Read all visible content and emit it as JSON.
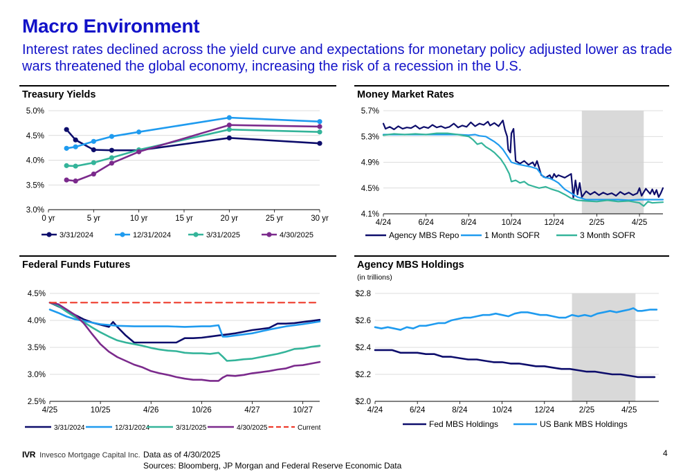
{
  "header": {
    "title": "Macro Environment",
    "subtitle": "Interest rates declined across the yield curve and expectations for monetary policy adjusted lower as trade wars threatened the global economy, increasing the risk of a recession in the U.S."
  },
  "footer": {
    "logo_ticker": "IVR",
    "logo_name": "Invesco Mortgage Capital Inc.",
    "data_as_of": "Data as of 4/30/2025",
    "sources": "Sources: Bloomberg, JP Morgan and Federal Reserve Economic Data",
    "page_number": "4"
  },
  "colors": {
    "title": "#1212c8",
    "navy": "#0d0d6b",
    "light_blue": "#1f9bef",
    "teal": "#34b49a",
    "purple": "#7b2a8c",
    "red_dashed": "#ee3b2b",
    "shading": "#d9d9d9"
  },
  "chart_data": [
    {
      "id": "treasury",
      "type": "line",
      "title": "Treasury Yields",
      "xlabel": "",
      "ylabel": "",
      "xlim": [
        0,
        30
      ],
      "ylim": [
        3.0,
        5.0
      ],
      "x_ticks": [
        0,
        5,
        10,
        15,
        20,
        25,
        30
      ],
      "x_tick_labels": [
        "0 yr",
        "5 yr",
        "10 yr",
        "15 yr",
        "20 yr",
        "25 yr",
        "30 yr"
      ],
      "y_ticks": [
        3.0,
        3.5,
        4.0,
        4.5,
        5.0
      ],
      "y_tick_labels": [
        "3.0%",
        "3.5%",
        "4.0%",
        "4.5%",
        "5.0%"
      ],
      "grid": "horizontal",
      "legend": "bottom",
      "markers_x": [
        2,
        3,
        5,
        7,
        10,
        20,
        30
      ],
      "series": [
        {
          "name": "3/31/2024",
          "color": "#0d0d6b",
          "x": [
            2,
            3,
            5,
            7,
            10,
            20,
            30
          ],
          "values": [
            4.62,
            4.41,
            4.21,
            4.2,
            4.2,
            4.45,
            4.34
          ]
        },
        {
          "name": "12/31/2024",
          "color": "#1f9bef",
          "x": [
            2,
            3,
            5,
            7,
            10,
            20,
            30
          ],
          "values": [
            4.24,
            4.27,
            4.38,
            4.48,
            4.57,
            4.86,
            4.78
          ]
        },
        {
          "name": "3/31/2025",
          "color": "#34b49a",
          "x": [
            2,
            3,
            5,
            7,
            10,
            20,
            30
          ],
          "values": [
            3.89,
            3.88,
            3.95,
            4.05,
            4.21,
            4.62,
            4.57
          ]
        },
        {
          "name": "4/30/2025",
          "color": "#7b2a8c",
          "x": [
            2,
            3,
            5,
            7,
            10,
            20,
            30
          ],
          "values": [
            3.6,
            3.58,
            3.72,
            3.94,
            4.17,
            4.71,
            4.68
          ]
        }
      ]
    },
    {
      "id": "money",
      "type": "line",
      "title": "Money Market Rates",
      "xlabel": "",
      "ylabel": "",
      "xlim": [
        0,
        13.1
      ],
      "ylim": [
        4.1,
        5.7
      ],
      "x_ticks": [
        0,
        2,
        4,
        6,
        8,
        10,
        12
      ],
      "x_tick_labels": [
        "4/24",
        "6/24",
        "8/24",
        "10/24",
        "12/24",
        "2/25",
        "4/25"
      ],
      "y_ticks": [
        4.1,
        4.5,
        4.9,
        5.3,
        5.7
      ],
      "y_tick_labels": [
        "4.1%",
        "4.5%",
        "4.9%",
        "5.3%",
        "5.7%"
      ],
      "grid": "horizontal",
      "legend": "bottom",
      "shaded_x_range": [
        9.3,
        12.2
      ],
      "series": [
        {
          "name": "Agency MBS Repo",
          "color": "#0d0d6b",
          "x": [
            0,
            0.1,
            0.3,
            0.5,
            0.7,
            0.9,
            1.1,
            1.3,
            1.5,
            1.7,
            1.9,
            2.1,
            2.3,
            2.5,
            2.7,
            2.9,
            3.1,
            3.3,
            3.5,
            3.7,
            3.9,
            4.1,
            4.3,
            4.5,
            4.7,
            4.9,
            5.0,
            5.2,
            5.4,
            5.6,
            5.7,
            5.8,
            5.85,
            5.95,
            6.0,
            6.1,
            6.2,
            6.4,
            6.6,
            6.8,
            7.0,
            7.1,
            7.2,
            7.4,
            7.6,
            7.8,
            7.9,
            8.0,
            8.1,
            8.2,
            8.5,
            8.8,
            8.9,
            9.0,
            9.1,
            9.2,
            9.3,
            9.5,
            9.7,
            9.9,
            10.1,
            10.3,
            10.5,
            10.7,
            10.9,
            11.1,
            11.3,
            11.5,
            11.7,
            11.9,
            12.0,
            12.1,
            12.3,
            12.5,
            12.6,
            12.7,
            12.8,
            12.9,
            13.0,
            13.1
          ],
          "values": [
            5.5,
            5.42,
            5.45,
            5.41,
            5.46,
            5.42,
            5.44,
            5.43,
            5.47,
            5.42,
            5.45,
            5.43,
            5.48,
            5.44,
            5.46,
            5.43,
            5.45,
            5.5,
            5.44,
            5.47,
            5.45,
            5.52,
            5.46,
            5.5,
            5.48,
            5.53,
            5.47,
            5.51,
            5.46,
            5.55,
            5.4,
            5.3,
            5.1,
            5.05,
            5.35,
            5.42,
            4.92,
            4.88,
            4.92,
            4.86,
            4.9,
            4.84,
            4.92,
            4.7,
            4.66,
            4.7,
            4.64,
            4.72,
            4.67,
            4.7,
            4.66,
            4.72,
            4.35,
            4.62,
            4.4,
            4.58,
            4.36,
            4.45,
            4.4,
            4.44,
            4.39,
            4.43,
            4.4,
            4.42,
            4.38,
            4.44,
            4.4,
            4.43,
            4.39,
            4.42,
            4.5,
            4.38,
            4.49,
            4.41,
            4.48,
            4.4,
            4.47,
            4.36,
            4.42,
            4.5
          ]
        },
        {
          "name": "1 Month SOFR",
          "color": "#1f9bef",
          "x": [
            0,
            0.5,
            1.0,
            1.5,
            2.0,
            2.5,
            3.0,
            3.5,
            4.0,
            4.3,
            4.5,
            4.8,
            5.0,
            5.2,
            5.4,
            5.6,
            5.8,
            6.0,
            6.3,
            6.6,
            6.9,
            7.2,
            7.5,
            7.8,
            8.0,
            8.2,
            8.5,
            8.8,
            9.1,
            9.5,
            10.0,
            10.5,
            11.0,
            11.5,
            12.0,
            12.5,
            13.1
          ],
          "values": [
            5.33,
            5.33,
            5.33,
            5.33,
            5.33,
            5.33,
            5.33,
            5.33,
            5.32,
            5.33,
            5.31,
            5.3,
            5.26,
            5.22,
            5.17,
            5.1,
            5.0,
            4.9,
            4.87,
            4.85,
            4.83,
            4.8,
            4.67,
            4.65,
            4.62,
            4.58,
            4.48,
            4.42,
            4.36,
            4.32,
            4.32,
            4.32,
            4.32,
            4.31,
            4.32,
            4.32,
            4.32
          ]
        },
        {
          "name": "3 Month SOFR",
          "color": "#34b49a",
          "x": [
            0,
            0.5,
            1.0,
            1.5,
            2.0,
            2.5,
            3.0,
            3.5,
            4.0,
            4.2,
            4.4,
            4.6,
            4.8,
            5.0,
            5.2,
            5.5,
            5.7,
            5.9,
            6.0,
            6.2,
            6.4,
            6.6,
            6.8,
            7.0,
            7.3,
            7.6,
            7.9,
            8.2,
            8.5,
            8.8,
            9.1,
            9.5,
            10.0,
            10.5,
            11.0,
            11.5,
            12.0,
            12.2,
            12.4,
            12.6,
            13.1
          ],
          "values": [
            5.32,
            5.34,
            5.33,
            5.34,
            5.33,
            5.35,
            5.35,
            5.33,
            5.3,
            5.25,
            5.18,
            5.2,
            5.14,
            5.1,
            5.05,
            4.95,
            4.85,
            4.72,
            4.6,
            4.62,
            4.58,
            4.6,
            4.55,
            4.53,
            4.5,
            4.52,
            4.48,
            4.45,
            4.4,
            4.34,
            4.31,
            4.3,
            4.29,
            4.31,
            4.29,
            4.3,
            4.27,
            4.22,
            4.29,
            4.27,
            4.28
          ]
        }
      ]
    },
    {
      "id": "fedfunds",
      "type": "line",
      "title": "Federal Funds Futures",
      "xlabel": "",
      "ylabel": "",
      "xlim": [
        0,
        32
      ],
      "ylim": [
        2.5,
        4.5
      ],
      "x_ticks": [
        0,
        6,
        12,
        18,
        24,
        30
      ],
      "x_tick_labels": [
        "4/25",
        "10/25",
        "4/26",
        "10/26",
        "4/27",
        "10/27"
      ],
      "y_ticks": [
        2.5,
        3.0,
        3.5,
        4.0,
        4.5
      ],
      "y_tick_labels": [
        "2.5%",
        "3.0%",
        "3.5%",
        "4.0%",
        "4.5%"
      ],
      "grid": "horizontal",
      "legend": "bottom",
      "series": [
        {
          "name": "3/31/2024",
          "color": "#0d0d6b",
          "x": [
            0,
            1,
            2,
            3,
            4,
            5,
            6,
            7,
            7.5,
            8,
            9,
            10,
            11,
            12,
            13,
            14,
            15,
            16,
            17,
            18,
            19,
            20,
            21,
            22,
            23,
            24,
            25,
            26,
            27,
            28,
            29,
            30,
            31,
            32
          ],
          "values": [
            4.33,
            4.26,
            4.18,
            4.1,
            4.02,
            3.96,
            3.92,
            3.88,
            3.97,
            3.88,
            3.72,
            3.59,
            3.59,
            3.59,
            3.59,
            3.59,
            3.59,
            3.67,
            3.67,
            3.68,
            3.7,
            3.72,
            3.74,
            3.76,
            3.79,
            3.82,
            3.84,
            3.86,
            3.94,
            3.94,
            3.95,
            3.97,
            3.99,
            4.01
          ]
        },
        {
          "name": "12/31/2024",
          "color": "#1f9bef",
          "x": [
            0,
            1,
            2,
            3,
            4,
            5,
            6,
            8,
            10,
            12,
            14,
            16,
            18,
            19,
            20,
            20.5,
            21,
            22,
            24,
            26,
            28,
            30,
            32
          ],
          "values": [
            4.2,
            4.14,
            4.07,
            4.02,
            3.99,
            3.96,
            3.93,
            3.9,
            3.89,
            3.89,
            3.89,
            3.88,
            3.89,
            3.89,
            3.91,
            3.7,
            3.7,
            3.72,
            3.76,
            3.83,
            3.89,
            3.93,
            3.98
          ]
        },
        {
          "name": "3/31/2025",
          "color": "#34b49a",
          "x": [
            0,
            1,
            2,
            3,
            4,
            5,
            6,
            7,
            8,
            9,
            10,
            11,
            12,
            13,
            14,
            15,
            16,
            17,
            18,
            19,
            20,
            20.5,
            21,
            22,
            23,
            24,
            25,
            26,
            27,
            28,
            29,
            30,
            31,
            32
          ],
          "values": [
            4.33,
            4.27,
            4.16,
            4.06,
            3.97,
            3.87,
            3.78,
            3.7,
            3.63,
            3.59,
            3.56,
            3.53,
            3.49,
            3.46,
            3.44,
            3.43,
            3.4,
            3.39,
            3.39,
            3.38,
            3.4,
            3.33,
            3.25,
            3.26,
            3.28,
            3.29,
            3.32,
            3.35,
            3.38,
            3.42,
            3.47,
            3.48,
            3.51,
            3.53
          ]
        },
        {
          "name": "4/30/2025",
          "color": "#7b2a8c",
          "x": [
            0,
            1,
            2,
            3,
            4,
            5,
            6,
            7,
            8,
            9,
            10,
            11,
            12,
            13,
            14,
            15,
            16,
            17,
            18,
            19,
            20,
            20.5,
            21,
            22,
            23,
            24,
            25,
            26,
            27,
            28,
            29,
            30,
            31,
            32
          ],
          "values": [
            4.33,
            4.3,
            4.2,
            4.1,
            3.95,
            3.75,
            3.56,
            3.42,
            3.32,
            3.25,
            3.18,
            3.13,
            3.06,
            3.02,
            2.99,
            2.95,
            2.92,
            2.9,
            2.9,
            2.88,
            2.88,
            2.94,
            2.98,
            2.97,
            2.99,
            3.02,
            3.04,
            3.06,
            3.09,
            3.11,
            3.16,
            3.17,
            3.2,
            3.23
          ]
        },
        {
          "name": "Current",
          "color": "#ee3b2b",
          "dashed": true,
          "x": [
            0,
            32
          ],
          "values": [
            4.33,
            4.33
          ]
        }
      ]
    },
    {
      "id": "mbs",
      "type": "line",
      "title": "Agency MBS Holdings",
      "subtitle": "(in trillions)",
      "xlabel": "",
      "ylabel": "",
      "xlim": [
        0,
        13.4
      ],
      "ylim": [
        2.0,
        2.8
      ],
      "x_ticks": [
        0,
        2,
        4,
        6,
        8,
        10,
        12
      ],
      "x_tick_labels": [
        "4/24",
        "6/24",
        "8/24",
        "10/24",
        "12/24",
        "2/25",
        "4/25"
      ],
      "y_ticks": [
        2.0,
        2.2,
        2.4,
        2.6,
        2.8
      ],
      "y_tick_labels": [
        "$2.0",
        "$2.2",
        "$2.4",
        "$2.6",
        "$2.8"
      ],
      "grid": "horizontal",
      "legend": "bottom",
      "shaded_x_range": [
        9.3,
        12.3
      ],
      "series": [
        {
          "name": "Fed MBS Holdings",
          "color": "#0d0d6b",
          "x": [
            0,
            0.4,
            0.8,
            1.2,
            1.6,
            2.0,
            2.4,
            2.8,
            3.2,
            3.6,
            4.0,
            4.4,
            4.8,
            5.2,
            5.6,
            6.0,
            6.4,
            6.8,
            7.2,
            7.6,
            8.0,
            8.4,
            8.8,
            9.2,
            9.6,
            10.0,
            10.4,
            10.8,
            11.2,
            11.6,
            12.0,
            12.4,
            12.8,
            13.2
          ],
          "values": [
            2.38,
            2.38,
            2.38,
            2.36,
            2.36,
            2.36,
            2.35,
            2.35,
            2.33,
            2.33,
            2.32,
            2.31,
            2.31,
            2.3,
            2.29,
            2.29,
            2.28,
            2.28,
            2.27,
            2.26,
            2.26,
            2.25,
            2.24,
            2.24,
            2.23,
            2.22,
            2.22,
            2.21,
            2.2,
            2.2,
            2.19,
            2.18,
            2.18,
            2.18
          ]
        },
        {
          "name": "US Bank MBS Holdings",
          "color": "#1f9bef",
          "x": [
            0,
            0.3,
            0.6,
            0.9,
            1.2,
            1.5,
            1.8,
            2.1,
            2.4,
            2.7,
            3.0,
            3.3,
            3.6,
            3.9,
            4.2,
            4.5,
            4.8,
            5.1,
            5.4,
            5.7,
            6.0,
            6.3,
            6.6,
            6.9,
            7.2,
            7.5,
            7.8,
            8.1,
            8.4,
            8.7,
            9.0,
            9.3,
            9.6,
            9.9,
            10.2,
            10.5,
            10.8,
            11.1,
            11.4,
            11.7,
            12.0,
            12.2,
            12.4,
            12.6,
            13.0,
            13.3
          ],
          "values": [
            2.55,
            2.54,
            2.55,
            2.54,
            2.53,
            2.55,
            2.54,
            2.56,
            2.56,
            2.57,
            2.58,
            2.58,
            2.6,
            2.61,
            2.62,
            2.62,
            2.63,
            2.64,
            2.64,
            2.65,
            2.64,
            2.63,
            2.65,
            2.66,
            2.66,
            2.65,
            2.64,
            2.64,
            2.63,
            2.62,
            2.62,
            2.64,
            2.63,
            2.64,
            2.63,
            2.65,
            2.66,
            2.67,
            2.66,
            2.67,
            2.68,
            2.69,
            2.67,
            2.67,
            2.68,
            2.68
          ]
        }
      ]
    }
  ]
}
